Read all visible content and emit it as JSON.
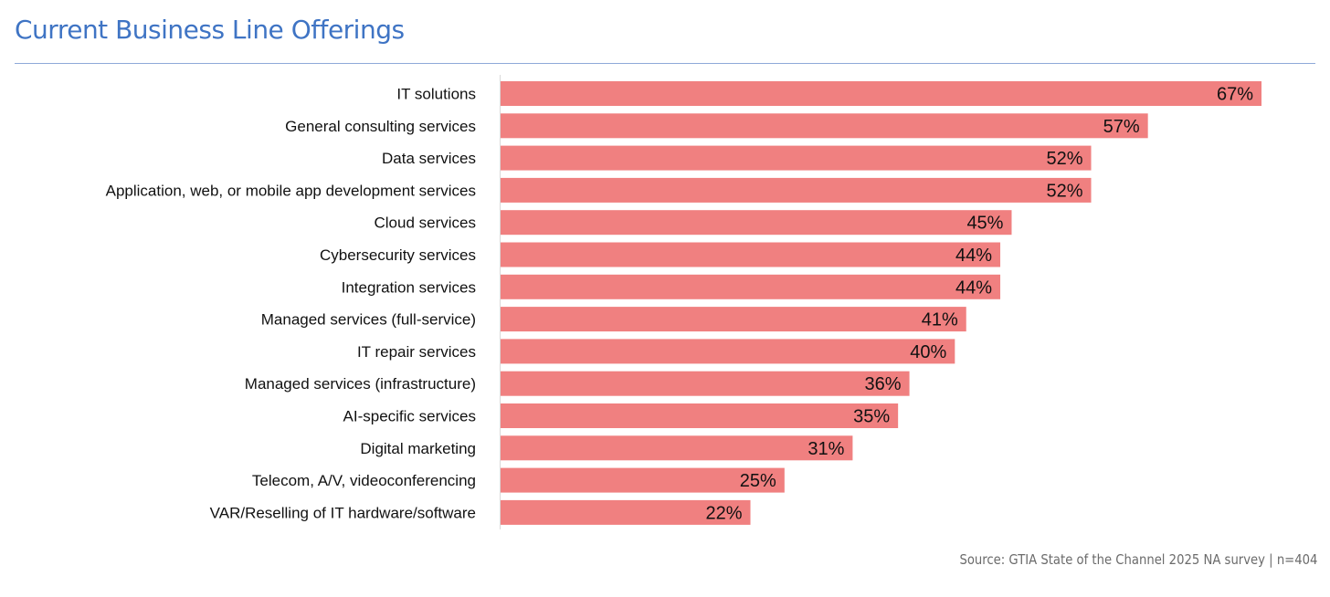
{
  "header": {
    "title": "Current Business Line Offerings"
  },
  "footer": {
    "source": "Source: GTIA State of the Channel 2025 NA survey | n=404"
  },
  "colors": {
    "bar": "#f08080",
    "title": "#3f74c4",
    "axis": "#d9d9d9"
  },
  "chart_data": {
    "type": "bar",
    "orientation": "horizontal",
    "title": "Current Business Line Offerings",
    "categories": [
      "IT solutions",
      "General consulting services",
      "Data services",
      "Application, web, or mobile app development services",
      "Cloud services",
      "Cybersecurity services",
      "Integration services",
      "Managed services (full-service)",
      "IT repair services",
      "Managed services (infrastructure)",
      "AI-specific services",
      "Digital marketing",
      "Telecom, A/V, videoconferencing",
      "VAR/Reselling of IT hardware/software"
    ],
    "values": [
      67,
      57,
      52,
      52,
      45,
      44,
      44,
      41,
      40,
      36,
      35,
      31,
      25,
      22
    ],
    "value_labels": [
      "67%",
      "57%",
      "52%",
      "52%",
      "45%",
      "44%",
      "44%",
      "41%",
      "40%",
      "36%",
      "35%",
      "31%",
      "25%",
      "22%"
    ],
    "unit": "%",
    "xlim": [
      0,
      67
    ],
    "grid": false,
    "legend": false
  }
}
